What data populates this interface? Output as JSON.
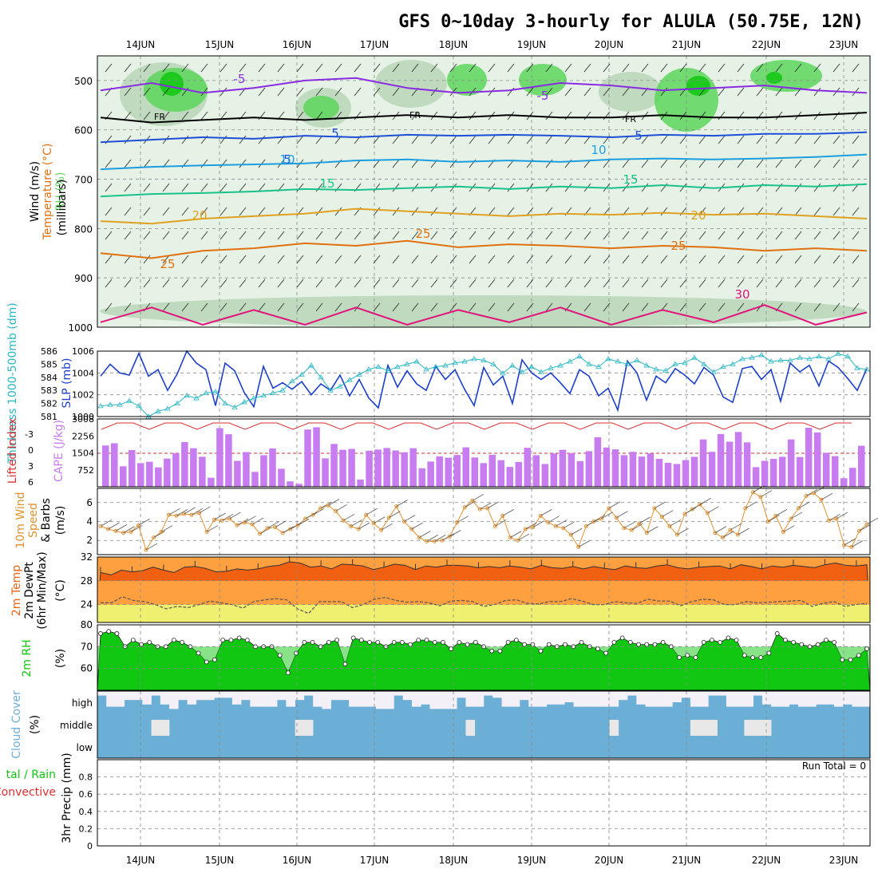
{
  "title": "GFS 0~10day 3-hourly for ALULA (50.75E, 12N)",
  "date_labels": [
    "14JUN",
    "15JUN",
    "16JUN",
    "17JUN",
    "18JUN",
    "19JUN",
    "20JUN",
    "21JUN",
    "22JUN",
    "23JUN"
  ],
  "colors": {
    "rh_light": "#e6f2e6",
    "rh_mid": "#b9d6b9",
    "rh_green": "#5cd65c",
    "rh_bright": "#11c711",
    "temp_m5": "#8a2be2",
    "temp_fr": "#000000",
    "temp_5": "#1e4fd8",
    "temp_10": "#1a9ee0",
    "temp_15": "#19c28a",
    "temp_20": "#e0a020",
    "temp_25": "#e07010",
    "temp_30": "#e0147a",
    "slp": "#1c3fc9",
    "thickness": "#2ab7c4",
    "lifted": "#d93030",
    "cape": "#c77cf0",
    "wind10": "#e09030",
    "temp2m": "#f06010",
    "dew_fill": "#ffa040",
    "dew_low": "#f0f070",
    "rh2m_dark": "#11c711",
    "rh2m_light": "#55ee55",
    "cloud": "#6baed6",
    "cloud_bg": "#f4f0f8"
  },
  "chart_data": [
    {
      "type": "heatmap",
      "name_labels": {
        "ylabel_rh": "RH (%)",
        "ylabel_temp": "Temperature (°C)",
        "ylabel_wind": "Wind (m/s)",
        "ylabel_units": "(millibars)"
      },
      "y_ticks": [
        500,
        600,
        700,
        800,
        900,
        1000
      ],
      "ylim": [
        450,
        1000
      ],
      "contour_labels": [
        "-5",
        "-5",
        "FR",
        "FR",
        "FR",
        "5",
        "5",
        "5",
        "10",
        "10",
        "10",
        "15",
        "15",
        "20",
        "20",
        "25",
        "25",
        "25",
        "30",
        "30",
        "30",
        "30",
        "30",
        "30"
      ],
      "isotherms": [
        {
          "label": "-5",
          "level": [
            520,
            505,
            525,
            515,
            500,
            495,
            515,
            525,
            520,
            505,
            510,
            520,
            515,
            510,
            520,
            525
          ]
        },
        {
          "label": "FR",
          "level": [
            575,
            585,
            580,
            575,
            580,
            575,
            570,
            575,
            570,
            575,
            575,
            570,
            575,
            575,
            570,
            565
          ]
        },
        {
          "label": "5",
          "level": [
            625,
            620,
            615,
            618,
            612,
            615,
            610,
            612,
            610,
            612,
            615,
            610,
            612,
            608,
            608,
            605
          ]
        },
        {
          "label": "10",
          "level": [
            680,
            675,
            672,
            670,
            668,
            662,
            660,
            665,
            662,
            665,
            660,
            658,
            660,
            658,
            655,
            650
          ]
        },
        {
          "label": "15",
          "level": [
            735,
            730,
            728,
            725,
            720,
            722,
            718,
            715,
            720,
            715,
            718,
            712,
            718,
            712,
            715,
            710
          ]
        },
        {
          "label": "20",
          "level": [
            785,
            790,
            780,
            775,
            770,
            760,
            765,
            770,
            775,
            770,
            772,
            768,
            772,
            770,
            775,
            780
          ]
        },
        {
          "label": "25",
          "level": [
            850,
            860,
            845,
            840,
            830,
            835,
            825,
            838,
            832,
            835,
            840,
            835,
            838,
            845,
            840,
            845
          ]
        },
        {
          "label": "30",
          "level": [
            990,
            960,
            995,
            965,
            995,
            960,
            995,
            965,
            990,
            960,
            995,
            965,
            990,
            955,
            995,
            970
          ]
        }
      ]
    },
    {
      "type": "line",
      "ylabel_left": "Thickness 1000-500mb (dm)",
      "ylabel_right": "SLP (mb)",
      "left_ticks": [
        581,
        582,
        583,
        584,
        585,
        586
      ],
      "right_ticks": [
        1000,
        1002,
        1004,
        1006
      ],
      "right_ylim": [
        1000,
        1006
      ],
      "left_ylim": [
        581,
        586
      ],
      "series": [
        {
          "name": "SLP",
          "values": [
            1003.7,
            1004.8,
            1004.0,
            1003.8,
            1005.8,
            1003.7,
            1004.3,
            1002.4,
            1003.9,
            1006.0,
            1004.9,
            1004.3,
            1001.0,
            1004.9,
            1004.2,
            1002.2,
            1000.9,
            1004.6,
            1002.6,
            1003.1,
            1002.5,
            1003.2,
            1002.0,
            1003.0,
            1002.4,
            1003.8,
            1001.9,
            1003.4,
            1001.7,
            1000.8,
            1004.7,
            1002.7,
            1004.2,
            1003.0,
            1002.4,
            1004.6,
            1003.4,
            1004.3,
            1002.5,
            1001.0,
            1004.5,
            1002.9,
            1003.7,
            1001.2,
            1005.2,
            1004.0,
            1003.4,
            1004.0,
            1003.1,
            1002.1,
            1004.3,
            1003.7,
            1001.9,
            1002.6,
            1000.6,
            1005.1,
            1004.0,
            1001.5,
            1003.7,
            1003.1,
            1004.4,
            1003.8,
            1003.0,
            1004.5,
            1003.8,
            1001.8,
            1001.3,
            1004.4,
            1004.6,
            1003.4,
            1004.3,
            1001.4,
            1004.9,
            1004.1,
            1004.7,
            1002.8,
            1005.1,
            1004.5,
            1003.5,
            1002.4,
            1004.4
          ]
        },
        {
          "name": "Thickness",
          "values": [
            581.8,
            581.9,
            581.9,
            582.2,
            581.8,
            581.0,
            581.4,
            581.6,
            582.0,
            582.6,
            582.4,
            582.8,
            582.9,
            582.0,
            581.7,
            582.1,
            582.4,
            582.6,
            582.8,
            583.0,
            583.7,
            584.2,
            584.9,
            584.0,
            583.0,
            583.3,
            583.8,
            584.2,
            584.6,
            584.8,
            584.5,
            584.8,
            585.0,
            585.2,
            584.6,
            584.8,
            584.9,
            585.1,
            585.2,
            585.4,
            585.3,
            585.0,
            584.3,
            584.9,
            584.4,
            584.8,
            584.4,
            584.7,
            584.9,
            585.2,
            585.6,
            585.0,
            584.8,
            585.4,
            585.2,
            585.0,
            585.3,
            584.9,
            584.6,
            584.5,
            585.0,
            585.1,
            585.5,
            585.0,
            584.4,
            584.8,
            585.0,
            585.4,
            585.5,
            585.7,
            585.2,
            585.3,
            585.3,
            585.5,
            585.4,
            585.6,
            585.4,
            585.8,
            585.6,
            584.7,
            584.6
          ]
        }
      ]
    },
    {
      "type": "bar",
      "ylabel_left": "Lifted Index",
      "ylabel_right": "CAPE (J/kg)",
      "left_ticks": [
        "-3",
        "0",
        "3",
        "6"
      ],
      "cape_ticks": [
        752,
        1504,
        2256,
        3008
      ],
      "cape_ylim": [
        0,
        3008
      ],
      "cape": [
        1830,
        1930,
        910,
        1630,
        1050,
        1110,
        860,
        1250,
        1490,
        1980,
        1710,
        1330,
        400,
        2600,
        2330,
        1150,
        1540,
        660,
        1400,
        1700,
        800,
        240,
        130,
        2540,
        2640,
        1260,
        1900,
        1640,
        1680,
        320,
        1600,
        1650,
        1720,
        1610,
        1530,
        1710,
        820,
        1120,
        1350,
        1290,
        1410,
        1750,
        1300,
        1050,
        1420,
        1180,
        880,
        1100,
        1730,
        1400,
        1010,
        1480,
        1640,
        1490,
        1140,
        1580,
        2200,
        1740,
        1660,
        1400,
        1550,
        1340,
        1480,
        1240,
        1060,
        1010,
        1180,
        1330,
        2100,
        1550,
        2340,
        2000,
        2430,
        1970,
        870,
        1150,
        1240,
        1330,
        2100,
        1320,
        2620,
        2410,
        1510,
        1360,
        380,
        840,
        1820
      ]
    },
    {
      "type": "line",
      "ylabel": "10m Wind Speed (m/s) & Barbs",
      "y_ticks": [
        2,
        4,
        6
      ],
      "ylim": [
        0.5,
        7.5
      ],
      "series": [
        {
          "name": "10m Wind",
          "values": [
            3.5,
            3.2,
            3.0,
            2.8,
            2.9,
            3.6,
            1.0,
            2.3,
            2.9,
            4.7,
            4.6,
            4.8,
            4.7,
            4.9,
            2.9,
            4.2,
            4.1,
            4.3,
            3.6,
            3.9,
            3.7,
            2.7,
            3.3,
            3.4,
            2.8,
            3.2,
            3.6,
            4.3,
            4.7,
            5.4,
            5.7,
            5.1,
            4.1,
            3.5,
            3.2,
            4.7,
            3.8,
            3.1,
            4.4,
            5.6,
            4.0,
            3.2,
            2.3,
            1.9,
            1.9,
            2.0,
            2.4,
            3.9,
            5.5,
            6.2,
            5.3,
            5.4,
            3.5,
            4.6,
            2.3,
            2.0,
            3.2,
            3.4,
            4.6,
            3.9,
            3.5,
            3.3,
            2.6,
            1.3,
            3.5,
            4.0,
            4.3,
            5.4,
            4.4,
            3.3,
            3.1,
            3.8,
            2.8,
            5.4,
            4.5,
            3.5,
            2.6,
            4.8,
            5.3,
            5.8,
            4.9,
            2.8,
            2.3,
            3.1,
            2.6,
            5.4,
            7.1,
            6.6,
            4.0,
            4.6,
            2.9,
            4.3,
            5.4,
            6.7,
            7.0,
            6.3,
            4.1,
            4.3,
            1.5,
            1.3,
            3.0,
            3.7
          ]
        }
      ]
    },
    {
      "type": "area",
      "ylabel": "2m Temp 2m DewPt (6hr Min/Max) (°C)",
      "y_ticks": [
        24,
        28,
        32
      ],
      "ylim": [
        21,
        32
      ],
      "series": [
        {
          "name": "2m Temp",
          "values": [
            29.4,
            29.0,
            29.8,
            29.5,
            29.7,
            30.3,
            29.8,
            29.4,
            30.3,
            30.4,
            30.1,
            29.5,
            29.6,
            30.0,
            29.8,
            30.0,
            30.4,
            30.6,
            31.2,
            31.0,
            30.3,
            30.5,
            30.0,
            30.8,
            30.7,
            30.5,
            29.9,
            30.3,
            30.8,
            30.6,
            29.9,
            30.5,
            30.3,
            30.6,
            30.6,
            30.5,
            30.2,
            30.4,
            30.2,
            30.5,
            30.3,
            30.0,
            30.6,
            30.2,
            30.1,
            30.4,
            30.0,
            30.4,
            30.1,
            29.9,
            30.5,
            30.2,
            30.1,
            30.5,
            30.7,
            30.2,
            30.0,
            30.3,
            30.4,
            30.5,
            30.0,
            30.7,
            30.4,
            30.0,
            30.5,
            30.3,
            30.6,
            30.4,
            30.2,
            30.7,
            31.0,
            30.6,
            30.5,
            30.7
          ]
        },
        {
          "name": "2m DewPt",
          "values": [
            24.3,
            24.3,
            25.3,
            24.7,
            24.5,
            24.0,
            23.3,
            23.7,
            23.5,
            24.0,
            24.6,
            24.3,
            24.0,
            23.4,
            24.5,
            24.8,
            25.0,
            24.8,
            23.3,
            22.5,
            24.5,
            24.5,
            24.5,
            23.5,
            24.0,
            24.9,
            25.2,
            24.7,
            24.4,
            24.5,
            24.3,
            23.8,
            24.6,
            24.7,
            24.5,
            23.7,
            24.0,
            24.7,
            24.8,
            24.2,
            24.1,
            24.5,
            24.5,
            25.0,
            24.6,
            24.0,
            24.0,
            24.5,
            24.3,
            24.2,
            24.9,
            24.6,
            24.6,
            23.8,
            24.5,
            24.9,
            24.8,
            24.0,
            24.0,
            24.5,
            24.3,
            24.4,
            24.5,
            24.6,
            24.7,
            23.7,
            24.2,
            24.5,
            23.7,
            24.0,
            24.2
          ]
        }
      ]
    },
    {
      "type": "area",
      "ylabel": "2m RH (%)",
      "y_ticks": [
        60,
        70,
        80
      ],
      "ylim": [
        50,
        80
      ],
      "values": [
        76,
        77,
        76,
        70,
        73,
        71,
        72,
        70,
        70,
        73,
        72,
        70,
        67,
        63,
        64,
        73,
        73,
        74,
        73,
        70,
        70,
        70,
        66,
        58,
        67,
        72,
        72,
        70,
        72,
        73,
        62,
        74,
        73,
        72,
        72,
        70,
        72,
        72,
        71,
        73,
        73,
        72,
        72,
        69,
        72,
        71,
        72,
        70,
        68,
        68,
        72,
        73,
        71,
        71,
        68,
        71,
        70,
        71,
        70,
        72,
        70,
        69,
        67,
        72,
        74,
        72,
        71,
        71,
        71,
        72,
        70,
        65,
        66,
        65,
        72,
        73,
        72,
        74,
        73,
        66,
        65,
        65,
        67,
        76,
        73,
        72,
        71,
        70,
        71,
        73,
        72,
        64,
        64,
        66,
        69
      ]
    },
    {
      "type": "heatmap",
      "ylabel": "Cloud Cover (%)",
      "row_labels": [
        "high",
        "middle",
        "low"
      ],
      "high": [
        80,
        30,
        30,
        60,
        60,
        40,
        80,
        40,
        20,
        60,
        40,
        60,
        60,
        70,
        70,
        40,
        60,
        30,
        30,
        30,
        60,
        30,
        60,
        80,
        30,
        20,
        60,
        60,
        30,
        30,
        30,
        20,
        20,
        80,
        60,
        30,
        40,
        20,
        20,
        20,
        70,
        30,
        30,
        80,
        70,
        30,
        30,
        60,
        30,
        30,
        40,
        40,
        50,
        30,
        30,
        30,
        30,
        30,
        60,
        80,
        40,
        30,
        30,
        30,
        50,
        70,
        30,
        30,
        80,
        80,
        30,
        30,
        30,
        80,
        40,
        30,
        30,
        40,
        30,
        30,
        40,
        40,
        30,
        40,
        30,
        30
      ],
      "middle": [
        0,
        0,
        0,
        0,
        0,
        0,
        30,
        30,
        0,
        0,
        0,
        0,
        0,
        0,
        0,
        0,
        0,
        0,
        0,
        0,
        0,
        0,
        30,
        30,
        0,
        0,
        0,
        0,
        0,
        0,
        0,
        0,
        0,
        0,
        0,
        0,
        0,
        0,
        0,
        0,
        0,
        30,
        0,
        0,
        0,
        0,
        0,
        0,
        0,
        0,
        0,
        0,
        0,
        0,
        0,
        0,
        0,
        30,
        0,
        0,
        0,
        0,
        0,
        0,
        0,
        0,
        30,
        30,
        30,
        0,
        0,
        0,
        30,
        30,
        30,
        0,
        0,
        0,
        0,
        0,
        0,
        0,
        0,
        0
      ]
    },
    {
      "type": "bar",
      "ylabel": "3hr Precip (mm)",
      "ylabel_series": "Total / Rain Convective",
      "y_ticks": [
        "0",
        "0.2",
        "0.4",
        "0.6",
        "0.8"
      ],
      "ylim": [
        0,
        1
      ],
      "run_total": "Run Total = 0"
    }
  ]
}
